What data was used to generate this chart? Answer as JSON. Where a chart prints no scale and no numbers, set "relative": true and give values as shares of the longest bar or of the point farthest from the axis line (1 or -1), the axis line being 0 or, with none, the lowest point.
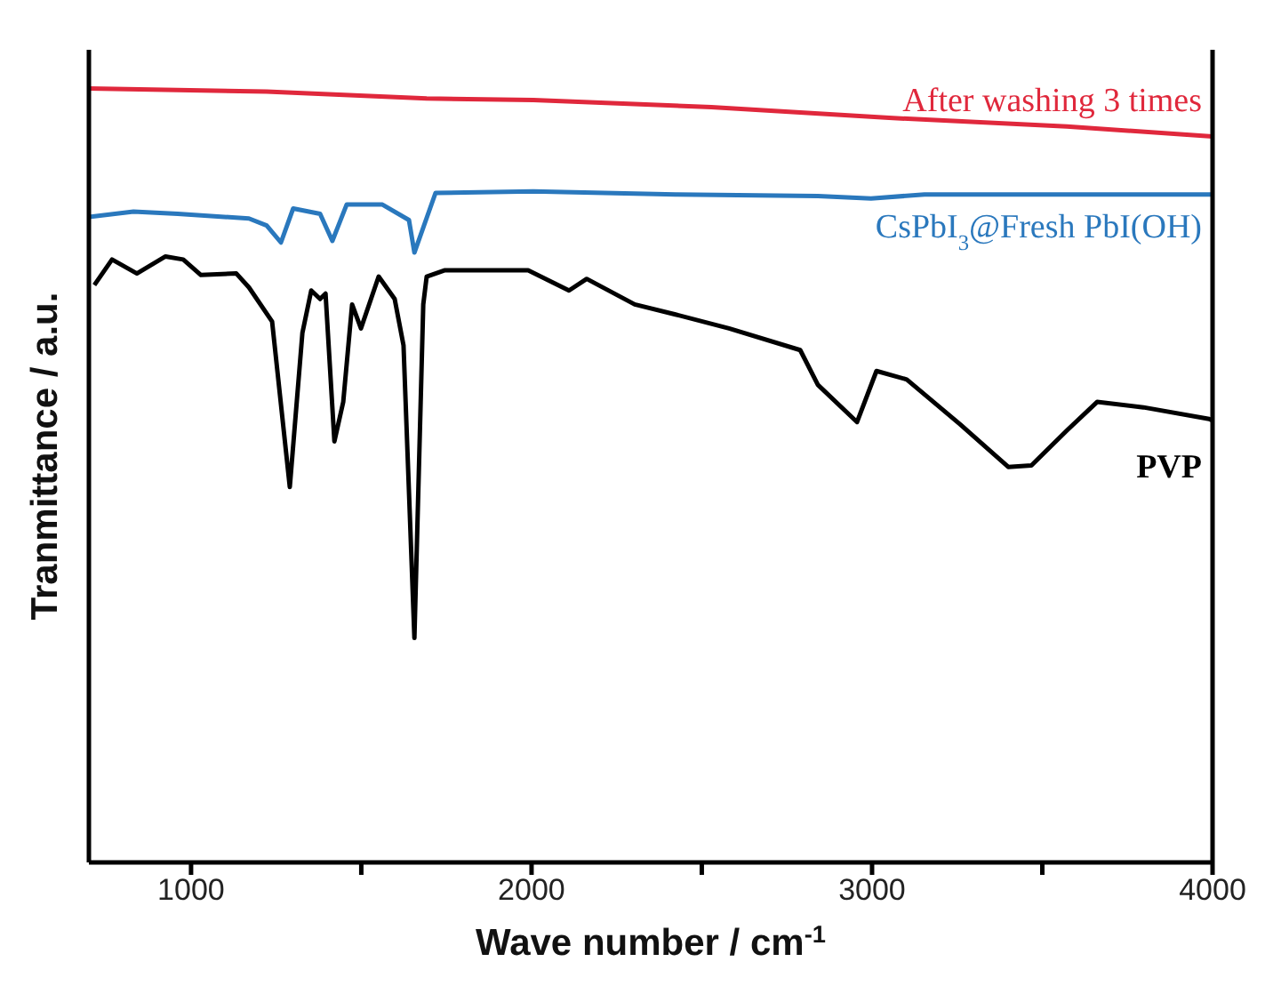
{
  "chart_data": {
    "type": "line",
    "xlabel": "Wave number / cm$^{-1}$",
    "ylabel": "Tranmittance / a.u.",
    "relative": true,
    "xlim": [
      700,
      4000
    ],
    "xticks": [
      1000,
      {
        "value": 1500,
        "label": null
      },
      2000,
      {
        "value": 2500,
        "label": null
      },
      3000,
      {
        "value": 3500,
        "label": null
      },
      4000
    ],
    "marker": "none",
    "line_style": "solid",
    "series": [
      {
        "name": "After washing 3 times",
        "color": "#e0283c",
        "x": [
          700,
          1222,
          1692,
          2005,
          2528,
          3050,
          3572,
          4000
        ],
        "values": [
          1.0,
          0.996,
          0.987,
          0.985,
          0.976,
          0.962,
          0.951,
          0.938
        ]
      },
      {
        "name": "CsPbI$_{3}$@Fresh PbI(OH)",
        "color": "#2a78bd",
        "x": [
          700,
          831,
          961,
          1170,
          1222,
          1264,
          1300,
          1379,
          1415,
          1457,
          1562,
          1640,
          1656,
          1718,
          2005,
          2423,
          2841,
          2997,
          3154,
          4000
        ],
        "values": [
          0.834,
          0.841,
          0.838,
          0.832,
          0.823,
          0.801,
          0.845,
          0.838,
          0.803,
          0.85,
          0.85,
          0.83,
          0.788,
          0.865,
          0.867,
          0.863,
          0.861,
          0.858,
          0.863,
          0.863
        ]
      },
      {
        "name": "PVP",
        "color": "#000000",
        "x": [
          716,
          768,
          841,
          925,
          977,
          1029,
          1133,
          1170,
          1238,
          1290,
          1327,
          1353,
          1379,
          1395,
          1421,
          1447,
          1473,
          1499,
          1551,
          1598,
          1624,
          1656,
          1682,
          1692,
          1744,
          1990,
          2110,
          2162,
          2303,
          2423,
          2580,
          2789,
          2841,
          2956,
          3013,
          3102,
          3259,
          3400,
          3468,
          3572,
          3661,
          3797,
          3990,
          4000
        ],
        "values": [
          0.746,
          0.779,
          0.761,
          0.783,
          0.779,
          0.759,
          0.761,
          0.743,
          0.699,
          0.485,
          0.684,
          0.739,
          0.728,
          0.735,
          0.544,
          0.595,
          0.721,
          0.69,
          0.757,
          0.728,
          0.668,
          0.29,
          0.721,
          0.757,
          0.765,
          0.765,
          0.739,
          0.754,
          0.721,
          0.708,
          0.69,
          0.662,
          0.617,
          0.569,
          0.635,
          0.624,
          0.566,
          0.511,
          0.513,
          0.558,
          0.595,
          0.588,
          0.573,
          0.571
        ]
      }
    ]
  }
}
